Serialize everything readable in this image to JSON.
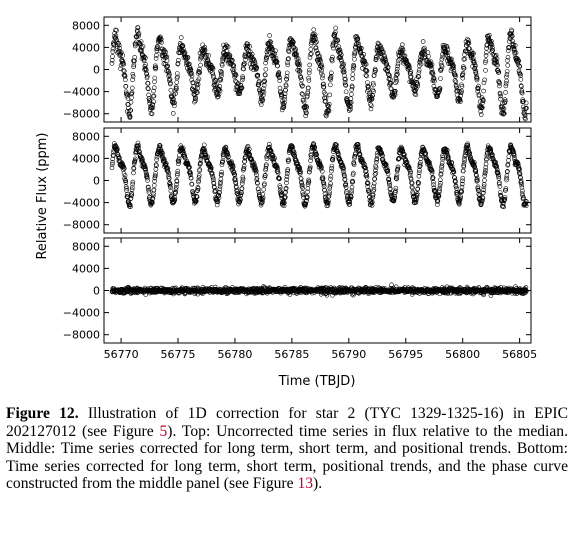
{
  "chart_data": [
    {
      "type": "scatter",
      "panel": "top",
      "xlim": [
        56768.5,
        56806
      ],
      "ylim": [
        -9500,
        9500
      ],
      "yticks": [
        -8000,
        -4000,
        0,
        4000,
        8000
      ],
      "ytick_labels": [
        "−8000",
        "−4000",
        "0",
        "4000",
        "8000"
      ],
      "series": [
        {
          "period_days": 1.93,
          "amplitude_ppm": 6200,
          "offset_ppm": 0,
          "amplitude_variation_ppm": 2000,
          "scatter_ppm": 700
        }
      ]
    },
    {
      "type": "scatter",
      "panel": "middle",
      "xlim": [
        56768.5,
        56806
      ],
      "ylim": [
        -9500,
        9500
      ],
      "yticks": [
        -8000,
        -4000,
        0,
        4000,
        8000
      ],
      "ytick_labels": [
        "−8000",
        "−4000",
        "0",
        "4000",
        "8000"
      ],
      "series": [
        {
          "period_days": 1.93,
          "amplitude_ppm": 5800,
          "offset_ppm": 1500,
          "amplitude_variation_ppm": 300,
          "scatter_ppm": 350
        }
      ]
    },
    {
      "type": "scatter",
      "panel": "bottom",
      "xlim": [
        56768.5,
        56806
      ],
      "ylim": [
        -9500,
        9500
      ],
      "yticks": [
        -8000,
        -4000,
        0,
        4000,
        8000
      ],
      "ytick_labels": [
        "−8000",
        "−4000",
        "0",
        "4000",
        "8000"
      ],
      "xticks": [
        56770,
        56775,
        56780,
        56785,
        56790,
        56795,
        56800,
        56805
      ],
      "xtick_labels": [
        "56770",
        "56775",
        "56780",
        "56785",
        "56790",
        "56795",
        "56800",
        "56805"
      ],
      "xlabel": "Time (TBJD)",
      "series": [
        {
          "period_days": 0,
          "amplitude_ppm": 0,
          "offset_ppm": 0,
          "amplitude_variation_ppm": 0,
          "scatter_ppm": 250
        }
      ]
    }
  ],
  "shared_ylabel": "Relative Flux (ppm)",
  "data_x_range": [
    56769.2,
    56805.6
  ],
  "caption": {
    "label": "Figure 12.",
    "text1": " Illustration of 1D correction for star 2 (TYC 1329-1325-16) in EPIC 202127012 (see Figure ",
    "ref1": "5",
    "text2": "). Top: Uncorrected time series in flux relative to the median. Middle: Time series corrected for long term, short term, and positional trends. Bottom: Time series corrected for long term, short term, positional trends, and the phase curve constructed from the middle panel (see Figure ",
    "ref2": "13",
    "text3": ")."
  }
}
